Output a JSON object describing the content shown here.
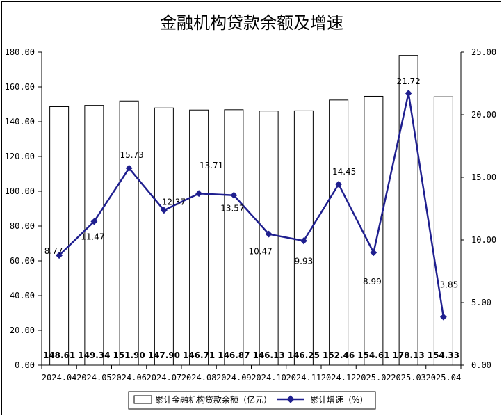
{
  "chart_data": {
    "type": "bar",
    "title": "金融机构贷款余额及增速",
    "categories": [
      "2024.04",
      "2024.05",
      "2024.06",
      "2024.07",
      "2024.08",
      "2024.09",
      "2024.10",
      "2024.11",
      "2024.12",
      "2025.02",
      "2025.03",
      "2025.04"
    ],
    "series": [
      {
        "name": "累计金融机构贷款余额（亿元）",
        "type": "bar",
        "axis": "left",
        "values": [
          148.61,
          149.34,
          151.9,
          147.9,
          146.71,
          146.87,
          146.13,
          146.25,
          152.46,
          154.61,
          178.13,
          154.33
        ],
        "labels": [
          "148.61",
          "149.34",
          "151.90",
          "147.90",
          "146.71",
          "146.87",
          "146.13",
          "146.25",
          "152.46",
          "154.61",
          "178.13",
          "154.33"
        ]
      },
      {
        "name": "累计增速（%）",
        "type": "line",
        "axis": "right",
        "values": [
          8.77,
          11.47,
          15.73,
          12.37,
          13.71,
          13.57,
          10.47,
          9.93,
          14.45,
          8.99,
          21.72,
          3.85
        ],
        "labels": [
          "8.77",
          "11.47",
          "15.73",
          "12.37",
          "13.71",
          "13.57",
          "10.47",
          "9.93",
          "14.45",
          "8.99",
          "21.72",
          "3.85"
        ]
      }
    ],
    "left_axis": {
      "ylim": [
        0,
        180
      ],
      "ticks": [
        "0.00",
        "20.00",
        "40.00",
        "60.00",
        "80.00",
        "100.00",
        "120.00",
        "140.00",
        "160.00",
        "180.00"
      ]
    },
    "right_axis": {
      "ylim": [
        0,
        25
      ],
      "ticks": [
        "0.00",
        "5.00",
        "10.00",
        "15.00",
        "20.00",
        "25.00"
      ]
    },
    "colors": {
      "bar_fill": "#ffffff",
      "bar_stroke": "#000000",
      "line": "#1f1f8f"
    },
    "grid": false,
    "legend_position": "bottom"
  }
}
